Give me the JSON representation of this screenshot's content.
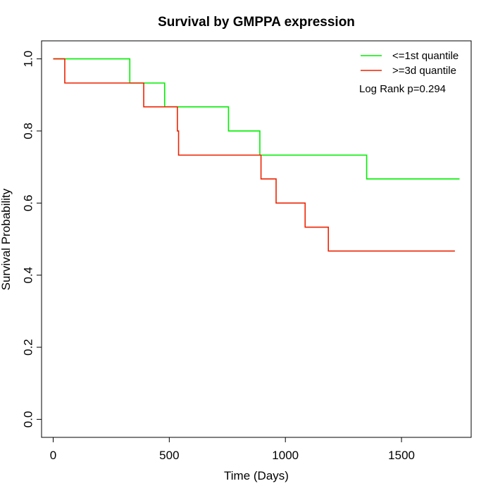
{
  "chart_data": {
    "type": "line",
    "title": "Survival by GMPPA expression",
    "xlabel": "Time (Days)",
    "ylabel": "Survival Probability",
    "xlim": [
      -50,
      1800
    ],
    "ylim": [
      -0.05,
      1.05
    ],
    "x_ticks": [
      0,
      500,
      1000,
      1500
    ],
    "y_ticks": [
      0.0,
      0.2,
      0.4,
      0.6,
      0.8,
      1.0
    ],
    "x_tick_labels": [
      "0",
      "500",
      "1000",
      "1500"
    ],
    "y_tick_labels": [
      "0.0",
      "0.2",
      "0.4",
      "0.6",
      "0.8",
      "1.0"
    ],
    "legend_position": "top-right",
    "annotation": "Log Rank p=0.294",
    "grid": false,
    "series": [
      {
        "name": "<=1st quantile",
        "color": "#00ee00",
        "step_points": [
          [
            0,
            1.0
          ],
          [
            330,
            1.0
          ],
          [
            330,
            0.933
          ],
          [
            480,
            0.933
          ],
          [
            480,
            0.867
          ],
          [
            755,
            0.867
          ],
          [
            755,
            0.8
          ],
          [
            890,
            0.8
          ],
          [
            890,
            0.733
          ],
          [
            1350,
            0.733
          ],
          [
            1350,
            0.667
          ],
          [
            1750,
            0.667
          ]
        ]
      },
      {
        "name": ">=3d quantile",
        "color": "#ee2200",
        "step_points": [
          [
            0,
            1.0
          ],
          [
            50,
            1.0
          ],
          [
            50,
            0.933
          ],
          [
            390,
            0.933
          ],
          [
            390,
            0.867
          ],
          [
            535,
            0.867
          ],
          [
            535,
            0.8
          ],
          [
            540,
            0.8
          ],
          [
            540,
            0.733
          ],
          [
            895,
            0.733
          ],
          [
            895,
            0.667
          ],
          [
            960,
            0.667
          ],
          [
            960,
            0.6
          ],
          [
            1085,
            0.6
          ],
          [
            1085,
            0.533
          ],
          [
            1185,
            0.533
          ],
          [
            1185,
            0.467
          ],
          [
            1730,
            0.467
          ]
        ]
      }
    ]
  }
}
